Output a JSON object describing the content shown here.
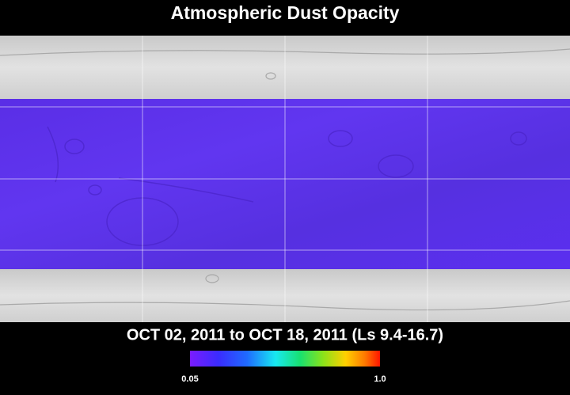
{
  "title": "Atmospheric Dust Opacity",
  "date_range": "OCT 02, 2011 to OCT 18, 2011 (Ls 9.4-16.7)",
  "colorbar": {
    "min_label": "0.05",
    "max_label": "1.0"
  }
}
